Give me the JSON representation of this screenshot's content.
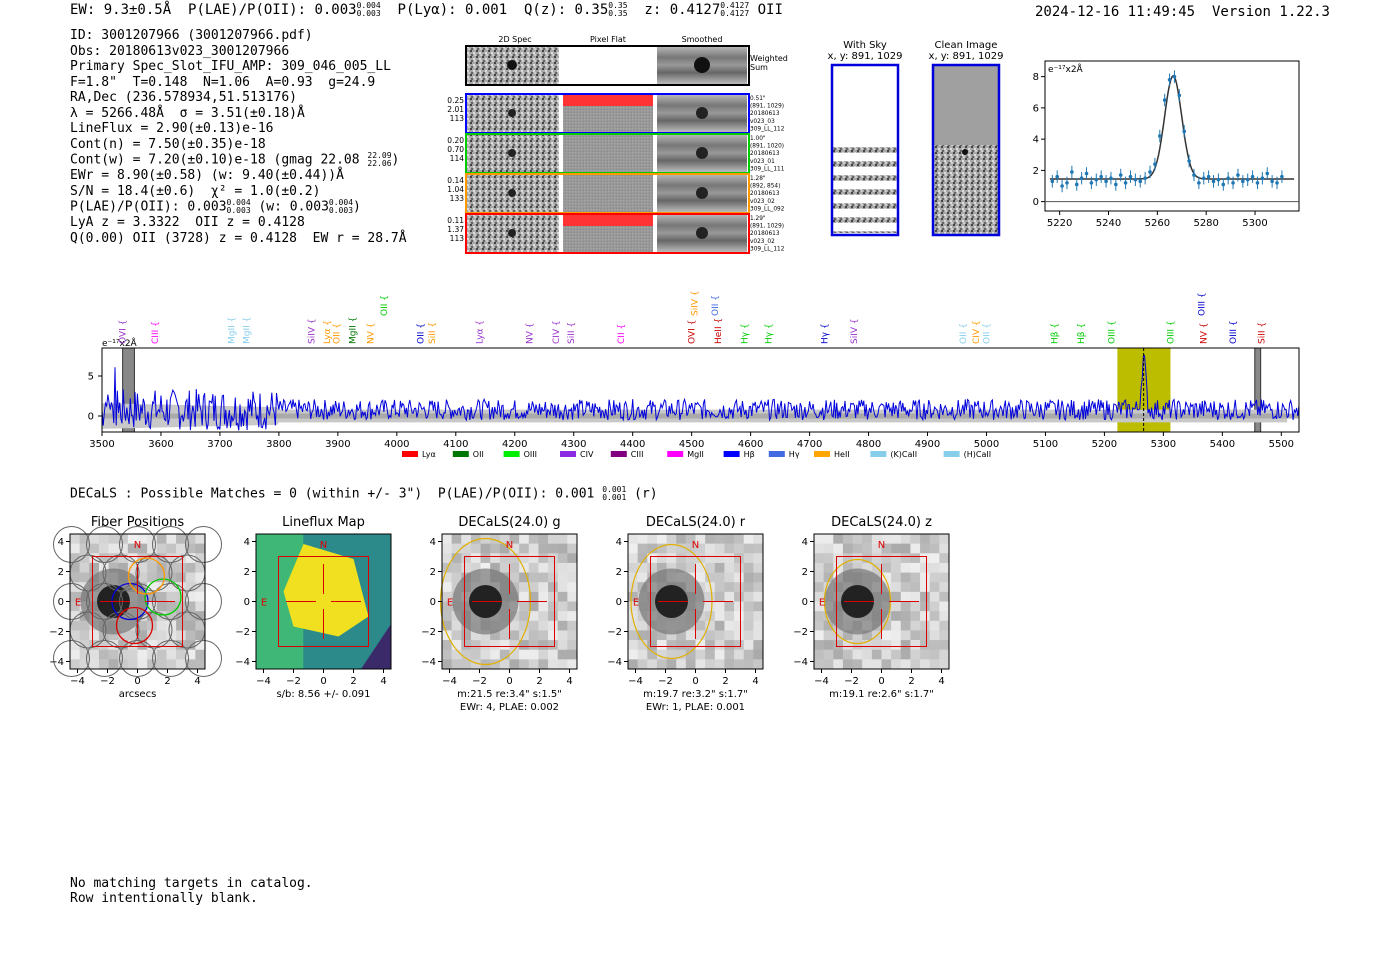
{
  "header": {
    "ew": "EW: 9.3±0.5Å",
    "plae_label": "P(LAE)/P(OII): 0.003",
    "plae_hi": "0.004",
    "plae_lo": "0.003",
    "plya": "P(Lyα): 0.001",
    "qz_label": "Q(z): 0.35",
    "qz_hi": "0.35",
    "qz_lo": "0.35",
    "z_label": "z: 0.4127",
    "z_hi": "0.4127",
    "z_lo": "0.4127",
    "z_line": "OII",
    "timestamp": "2024-12-16 11:49:45",
    "version": "Version 1.22.3"
  },
  "info": {
    "id": "ID: 3001207966 (3001207966.pdf)",
    "obs": "Obs: 20180613v023_3001207966",
    "primary": "Primary Spec_Slot_IFU_AMP: 309_046_005_LL",
    "fiber_params": "F=1.8\"  T=0.148  N=1.06  A=0.93  g=24.9",
    "radec": "RA,Dec (236.578934,51.513176)",
    "lambda": "λ = 5266.48Å  σ = 3.51(±0.18)Å",
    "lineflux": "LineFlux = 2.90(±0.13)e-16",
    "cont_n": "Cont(n) = 7.50(±0.35)e-18",
    "cont_w": "Cont(w) = 7.20(±0.10)e-18 (gmag 22.08",
    "gmag_hi": "22.09",
    "gmag_lo": "22.06",
    "ewr": "EWr = 8.90(±0.58) (w: 9.40(±0.44))Å",
    "sn": "S/N = 18.4(±0.6)  χ² = 1.0(±0.2)",
    "plae": "P(LAE)/P(OII): 0.003",
    "plae_hi": "0.004",
    "plae_lo": "0.003",
    "plae_w": "(w: 0.003",
    "plae_w_hi": "0.004",
    "plae_w_lo": "0.003",
    "lya_z": "LyA z = 3.3322  OII z = 0.4128",
    "q_line": "Q(0.00) OII (3728) z = 0.4128  EW r = 28.7Å"
  },
  "cutouts": {
    "col_2d": "2D Spec",
    "col_flat": "Pixel Flat",
    "col_smooth": "Smoothed",
    "weighted": "Weighted Sum",
    "rows": [
      {
        "w1": "0.25",
        "w2": "2.01",
        "w3": "113",
        "d1": "0.51\"",
        "d2": "(891, 1029)",
        "d3": "20180613",
        "d4": "v023_03",
        "d5": "309_LL_112",
        "color": "#0000ff"
      },
      {
        "w1": "0.20",
        "w2": "0.70",
        "w3": "114",
        "d1": "1.00\"",
        "d2": "(891, 1020)",
        "d3": "20180613",
        "d4": "v023_01",
        "d5": "309_LL_111",
        "color": "#00cc00"
      },
      {
        "w1": "0.14",
        "w2": "1.04",
        "w3": "133",
        "d1": "1.28\"",
        "d2": "(892, 854)",
        "d3": "20180613",
        "d4": "v023_02",
        "d5": "309_LL_092",
        "color": "#ff9900"
      },
      {
        "w1": "0.11",
        "w2": "1.37",
        "w3": "113",
        "d1": "1.29\"",
        "d2": "(891, 1029)",
        "d3": "20180613",
        "d4": "v023_02",
        "d5": "309_LL_112",
        "color": "#ff0000"
      }
    ]
  },
  "sky": {
    "with_sky": "With Sky",
    "with_sky_xy": "x, y: 891, 1029",
    "clean": "Clean Image",
    "clean_xy": "x, y: 891, 1029"
  },
  "chart_data": [
    {
      "type": "line",
      "title": "Emission line fit",
      "ylabel_text": "e⁻¹⁷x2Å",
      "xlim": [
        5214,
        5318
      ],
      "ylim": [
        -0.6,
        9
      ],
      "xticks": [
        5220,
        5240,
        5260,
        5280,
        5300
      ],
      "yticks": [
        0,
        2,
        4,
        6,
        8
      ],
      "model": {
        "center": 5266.48,
        "sigma": 3.51,
        "amp": 6.6,
        "cont": 1.45
      },
      "points": [
        [
          5217,
          1.3
        ],
        [
          5219,
          1.6
        ],
        [
          5221,
          1.0
        ],
        [
          5223,
          1.2
        ],
        [
          5225,
          1.9
        ],
        [
          5227,
          1.1
        ],
        [
          5229,
          1.5
        ],
        [
          5231,
          1.8
        ],
        [
          5233,
          1.2
        ],
        [
          5235,
          1.4
        ],
        [
          5237,
          1.6
        ],
        [
          5239,
          1.3
        ],
        [
          5241,
          1.5
        ],
        [
          5243,
          1.1
        ],
        [
          5245,
          1.7
        ],
        [
          5247,
          1.2
        ],
        [
          5249,
          1.6
        ],
        [
          5251,
          1.4
        ],
        [
          5253,
          1.3
        ],
        [
          5255,
          1.5
        ],
        [
          5257,
          1.9
        ],
        [
          5259,
          2.4
        ],
        [
          5261,
          4.2
        ],
        [
          5263,
          6.5
        ],
        [
          5265,
          7.8
        ],
        [
          5267,
          8.0
        ],
        [
          5269,
          6.8
        ],
        [
          5271,
          4.5
        ],
        [
          5273,
          2.6
        ],
        [
          5275,
          1.7
        ],
        [
          5277,
          1.2
        ],
        [
          5279,
          1.5
        ],
        [
          5281,
          1.6
        ],
        [
          5283,
          1.3
        ],
        [
          5285,
          1.4
        ],
        [
          5287,
          1.1
        ],
        [
          5289,
          1.5
        ],
        [
          5291,
          1.2
        ],
        [
          5293,
          1.7
        ],
        [
          5295,
          1.3
        ],
        [
          5297,
          1.4
        ],
        [
          5299,
          1.6
        ],
        [
          5301,
          1.2
        ],
        [
          5303,
          1.5
        ],
        [
          5305,
          1.8
        ],
        [
          5307,
          1.3
        ],
        [
          5309,
          1.2
        ],
        [
          5311,
          1.6
        ]
      ]
    },
    {
      "type": "line",
      "title": "Full spectrum",
      "ylabel_text": "e⁻¹⁷x2Å",
      "xlim": [
        3500,
        5530
      ],
      "ylim": [
        -2,
        8.5
      ],
      "xticks": [
        3500,
        3600,
        3700,
        3800,
        3900,
        4000,
        4100,
        4200,
        4300,
        4400,
        4500,
        4600,
        4700,
        4800,
        4900,
        5000,
        5100,
        5200,
        5300,
        5400,
        5500
      ],
      "yticks": [
        0,
        5
      ],
      "highlight": [
        5222,
        5312
      ],
      "line_center": 5266.5,
      "grey_bands": [
        [
          3535,
          3555
        ],
        [
          5455,
          5465
        ]
      ],
      "lines": [
        {
          "name": "OVI",
          "wave": 3535,
          "color": "#9932cc"
        },
        {
          "name": "CIII",
          "wave": 3590,
          "color": "#ff00ff"
        },
        {
          "name": "MgII",
          "wave": 3720,
          "color": "#87ceeb"
        },
        {
          "name": "MgII",
          "wave": 3745,
          "color": "#87ceeb"
        },
        {
          "name": "SiIV",
          "wave": 3855,
          "color": "#9932cc"
        },
        {
          "name": "Lyα",
          "wave": 3882,
          "color": "#ff9900"
        },
        {
          "name": "OII",
          "wave": 3898,
          "color": "#ff9900"
        },
        {
          "name": "MgII",
          "wave": 3925,
          "color": "#007700"
        },
        {
          "name": "NV",
          "wave": 3955,
          "color": "#ff9900"
        },
        {
          "name": "OII",
          "wave": 3978,
          "color": "#00cc00",
          "high": true
        },
        {
          "name": "OII",
          "wave": 4040,
          "color": "#0000cc"
        },
        {
          "name": "SiII",
          "wave": 4060,
          "color": "#ff9900"
        },
        {
          "name": "Lyα",
          "wave": 4140,
          "color": "#9932cc"
        },
        {
          "name": "NV",
          "wave": 4225,
          "color": "#9932cc"
        },
        {
          "name": "CIV",
          "wave": 4270,
          "color": "#9932cc"
        },
        {
          "name": "SiII",
          "wave": 4295,
          "color": "#9932cc"
        },
        {
          "name": "CII",
          "wave": 4380,
          "color": "#ff00ff"
        },
        {
          "name": "OVI",
          "wave": 4500,
          "color": "#cc0000"
        },
        {
          "name": "SiIV",
          "wave": 4505,
          "color": "#ff9900",
          "high": true
        },
        {
          "name": "OII",
          "wave": 4540,
          "color": "#4169e1",
          "high": true
        },
        {
          "name": "HeII",
          "wave": 4545,
          "color": "#cc0000"
        },
        {
          "name": "Hγ",
          "wave": 4590,
          "color": "#00cc00"
        },
        {
          "name": "Hγ",
          "wave": 4630,
          "color": "#00cc00"
        },
        {
          "name": "Hγ",
          "wave": 4725,
          "color": "#0000cc"
        },
        {
          "name": "SiIV",
          "wave": 4775,
          "color": "#9932cc"
        },
        {
          "name": "OII",
          "wave": 4960,
          "color": "#87ceeb"
        },
        {
          "name": "CIV",
          "wave": 4982,
          "color": "#ff9900"
        },
        {
          "name": "OII",
          "wave": 5000,
          "color": "#87ceeb"
        },
        {
          "name": "Hβ",
          "wave": 5115,
          "color": "#00cc00"
        },
        {
          "name": "Hβ",
          "wave": 5160,
          "color": "#00cc00"
        },
        {
          "name": "OIII",
          "wave": 5212,
          "color": "#00cc00"
        },
        {
          "name": "OIII",
          "wave": 5312,
          "color": "#00cc00"
        },
        {
          "name": "OIII",
          "wave": 5365,
          "color": "#0000cc",
          "high": true
        },
        {
          "name": "NV",
          "wave": 5368,
          "color": "#cc0000"
        },
        {
          "name": "OIII",
          "wave": 5418,
          "color": "#0000cc"
        },
        {
          "name": "SiII",
          "wave": 5466,
          "color": "#cc0000"
        }
      ],
      "legend": [
        {
          "name": "Lyα",
          "color": "#ff0000"
        },
        {
          "name": "OII",
          "color": "#007700"
        },
        {
          "name": "OIII",
          "color": "#00ee00"
        },
        {
          "name": "CIV",
          "color": "#8a2be2"
        },
        {
          "name": "CIII",
          "color": "#800080"
        },
        {
          "name": "MgII",
          "color": "#ff00ff"
        },
        {
          "name": "Hβ",
          "color": "#0000ff"
        },
        {
          "name": "Hγ",
          "color": "#4169e1"
        },
        {
          "name": "HeII",
          "color": "#ffa500"
        },
        {
          "name": "(K)CaII",
          "color": "#87ceeb"
        },
        {
          "name": "(H)CaII",
          "color": "#87ceeb"
        }
      ]
    }
  ],
  "decals": {
    "summary": "DECaLS : Possible Matches = 0 (within +/- 3\")  P(LAE)/P(OII): 0.001",
    "summary_hi": "0.001",
    "summary_lo": "0.001",
    "summary_band": "(r)",
    "panels": [
      {
        "title": "Fiber Positions",
        "cap1": "arcsecs",
        "cap2": ""
      },
      {
        "title": "Lineflux Map",
        "cap1": "s/b: 8.56 +/- 0.091",
        "cap2": ""
      },
      {
        "title": "DECaLS(24.0) g",
        "cap1": "m:21.5  re:3.4\"  s:1.5\"",
        "cap2": "EWr: 4, PLAE: 0.002"
      },
      {
        "title": "DECaLS(24.0) r",
        "cap1": "m:19.7  re:3.2\"  s:1.7\"",
        "cap2": "EWr: 1, PLAE: 0.001"
      },
      {
        "title": "DECaLS(24.0) z",
        "cap1": "m:19.1  re:2.6\"  s:1.7\"",
        "cap2": ""
      }
    ],
    "ticks": [
      "−4",
      "−2",
      "0",
      "2",
      "4"
    ],
    "north": "N",
    "east": "E"
  },
  "footer": {
    "line1": "No matching targets in catalog.",
    "line2": "Row intentionally blank."
  }
}
